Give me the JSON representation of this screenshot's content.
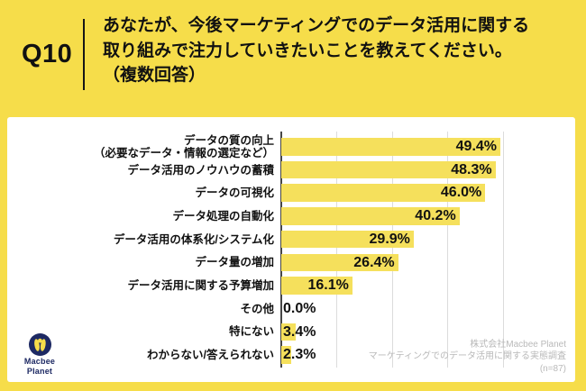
{
  "page": {
    "background_color": "#F6DD4A"
  },
  "header": {
    "question_number": "Q10",
    "question_lines": [
      "あなたが、今後マーケティングでのデータ活用に関する",
      "取り組みで注力していきたいことを教えてください。",
      "（複数回答）"
    ]
  },
  "chart_data": {
    "type": "bar",
    "orientation": "horizontal",
    "unit": "%",
    "xlim": [
      0,
      50
    ],
    "gridlines_percent": [
      12.5,
      25,
      37.5,
      50
    ],
    "bar_color": "#F5E05C",
    "categories": [
      "データの質の向上\n（必要なデータ・情報の選定など）",
      "データ活用のノウハウの蓄積",
      "データの可視化",
      "データ処理の自動化",
      "データ活用の体系化/システム化",
      "データ量の増加",
      "データ活用に関する予算増加",
      "その他",
      "特にない",
      "わからない/答えられない"
    ],
    "values": [
      49.4,
      48.3,
      46.0,
      40.2,
      29.9,
      26.4,
      16.1,
      0.0,
      3.4,
      2.3
    ],
    "value_labels": [
      "49.4%",
      "48.3%",
      "46.0%",
      "40.2%",
      "29.9%",
      "26.4%",
      "16.1%",
      "0.0%",
      "3.4%",
      "2.3%"
    ]
  },
  "footer": {
    "logo_line1": "Macbee",
    "logo_line2": "Planet",
    "attribution_lines": [
      "株式会社Macbee Planet",
      "マーケティングでのデータ活用に関する実態調査",
      "(n=87)"
    ]
  },
  "colors": {
    "background_yellow": "#F6DD4A",
    "bar_yellow": "#F5E05C",
    "logo_navy": "#1D2963",
    "attribution_gray": "#B9B9B9",
    "axis_gray": "#474747",
    "gridline_gray": "#DCDCDC"
  }
}
